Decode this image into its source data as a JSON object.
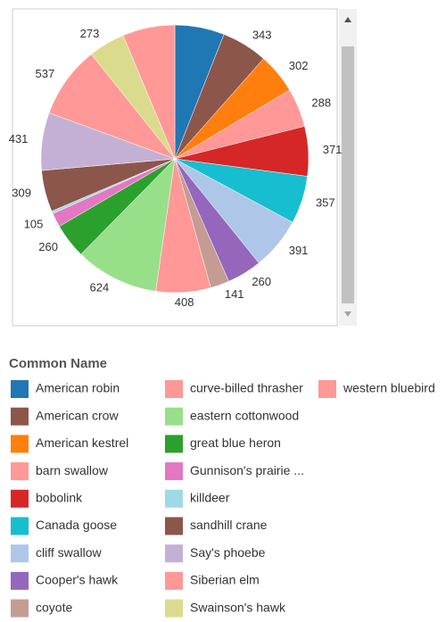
{
  "chart_data": {
    "type": "pie",
    "legend_title": "Common Name",
    "categories": [
      "American robin",
      "American crow",
      "American kestrel",
      "barn swallow",
      "bobolink",
      "Canada goose",
      "cliff swallow",
      "Cooper's hawk",
      "coyote",
      "curve-billed thrasher",
      "eastern cottonwood",
      "great blue heron",
      "Gunnison's prairie ...",
      "killdeer",
      "sandhill crane",
      "Say's phoebe",
      "Siberian elm",
      "Swainson's hawk",
      "western bluebird"
    ],
    "values": [
      370,
      343,
      302,
      288,
      371,
      357,
      391,
      260,
      141,
      408,
      624,
      260,
      105,
      20,
      309,
      431,
      537,
      273,
      390
    ],
    "value_labels": [
      null,
      "343",
      "302",
      "288",
      "371",
      "357",
      "391",
      "260",
      "141",
      "408",
      "624",
      "260",
      "105",
      null,
      "309",
      "431",
      "537",
      "273",
      null
    ],
    "colors": [
      "#1f77b4",
      "#8c564b",
      "#ff7f0e",
      "#ff9896",
      "#d62728",
      "#17becf",
      "#aec7e8",
      "#9467bd",
      "#c49c94",
      "#ff9896",
      "#98df8a",
      "#2ca02c",
      "#e377c2",
      "#9edae5",
      "#8c564b",
      "#c5b0d5",
      "#ff9896",
      "#dbdb8d",
      "#ff9896"
    ],
    "legend": "bottom"
  }
}
